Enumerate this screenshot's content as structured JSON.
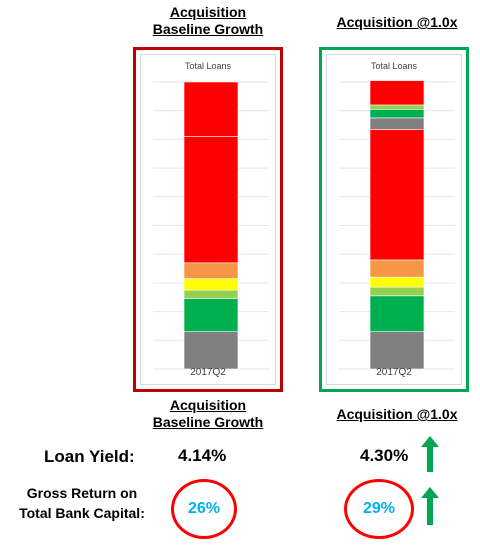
{
  "headers": {
    "left_top": [
      "Acquisition",
      "Baseline Growth"
    ],
    "right_top": "Acquisition @1.0x",
    "left_bottom": [
      "Acquisition",
      "Baseline Growth"
    ],
    "right_bottom": "Acquisition @1.0x"
  },
  "metrics": {
    "loan_yield_label": "Loan Yield:",
    "loan_yield_left": "4.14%",
    "loan_yield_right": "4.30%",
    "gross_return_label": [
      "Gross Return on",
      "Total Bank Capital:"
    ],
    "gross_return_left": "26%",
    "gross_return_right": "29%"
  },
  "colors": {
    "left_panel_border": "#c00000",
    "right_panel_border": "#00a651",
    "arrow": "#00a651",
    "circle": "#ff0000",
    "value_text": "#00b0f0"
  },
  "icons": {
    "increase_arrow": "arrow-up-icon"
  },
  "chart_data": [
    {
      "type": "bar",
      "stacked": true,
      "title": "Total Loans",
      "categories": [
        "2017Q2"
      ],
      "ylim": [
        0,
        100
      ],
      "grid": true,
      "series": [
        {
          "color": "#808080",
          "values": [
            13
          ]
        },
        {
          "color": "#00b050",
          "values": [
            11.5
          ]
        },
        {
          "color": "#92d050",
          "values": [
            3
          ]
        },
        {
          "color": "#ffff00",
          "values": [
            4
          ]
        },
        {
          "color": "#f79646",
          "values": [
            5.5
          ]
        },
        {
          "color": "#ff0000",
          "values": [
            44
          ]
        },
        {
          "color": "#ff0000",
          "values": [
            19
          ]
        }
      ]
    },
    {
      "type": "bar",
      "stacked": true,
      "title": "Total Loans",
      "categories": [
        "2017Q2"
      ],
      "ylim": [
        0,
        100
      ],
      "grid": true,
      "series": [
        {
          "color": "#808080",
          "values": [
            13
          ]
        },
        {
          "color": "#00b050",
          "values": [
            12.5
          ]
        },
        {
          "color": "#92d050",
          "values": [
            3
          ]
        },
        {
          "color": "#ffff00",
          "values": [
            3.5
          ]
        },
        {
          "color": "#f79646",
          "values": [
            6
          ]
        },
        {
          "color": "#ff0000",
          "values": [
            45.5
          ]
        },
        {
          "color": "#808080",
          "values": [
            4
          ]
        },
        {
          "color": "#00b050",
          "values": [
            3
          ]
        },
        {
          "color": "#92d050",
          "values": [
            1.5
          ]
        },
        {
          "color": "#ff0000",
          "values": [
            8.5
          ]
        }
      ]
    }
  ]
}
